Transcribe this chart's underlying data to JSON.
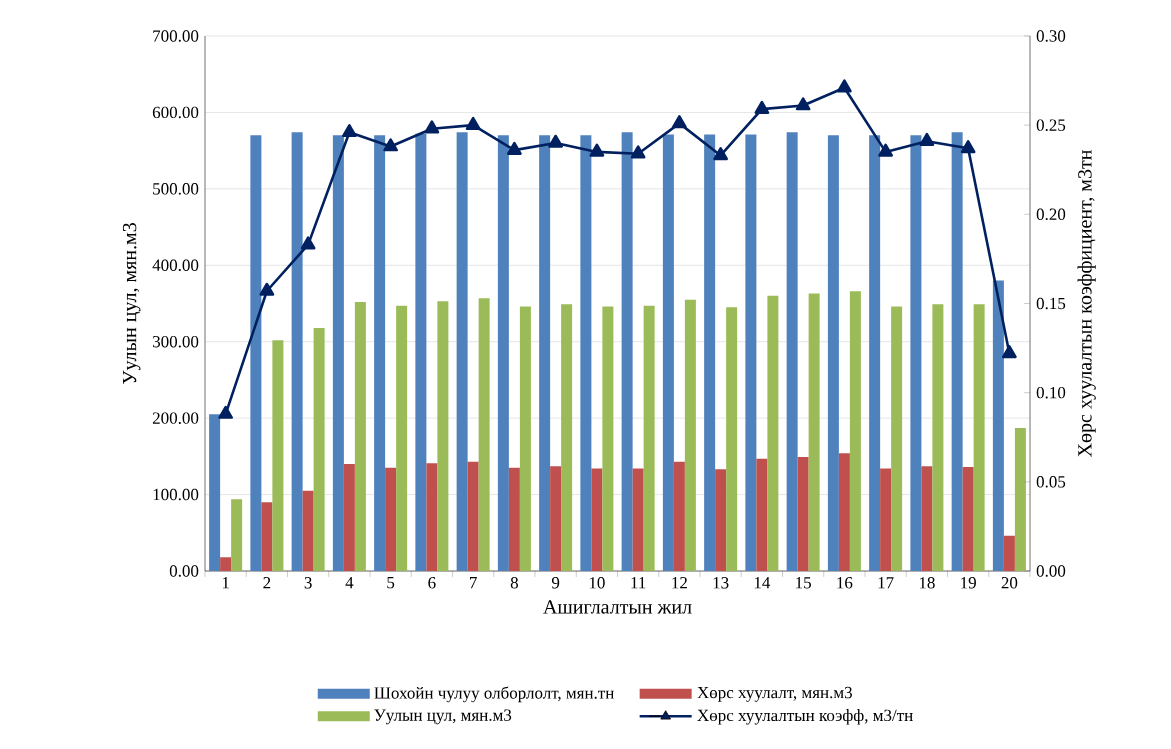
{
  "chart_data": {
    "type": "bar",
    "xlabel": "Ашиглалтын жил",
    "ylabel": "Уулын цул, мян.м3",
    "y2label": "Хөрс хуулалтын коэффициент, м3тн",
    "categories": [
      "1",
      "2",
      "3",
      "4",
      "5",
      "6",
      "7",
      "8",
      "9",
      "10",
      "11",
      "12",
      "13",
      "14",
      "15",
      "16",
      "17",
      "18",
      "19",
      "20"
    ],
    "series": [
      {
        "name": "Шохойн чулуу олборлолт, мян.тн",
        "color": "#4f81bd",
        "values": [
          205,
          570,
          574,
          570,
          570,
          572,
          574,
          570,
          570,
          570,
          574,
          571,
          571,
          571,
          574,
          570,
          570,
          570,
          574,
          380
        ]
      },
      {
        "name": "Хөрс хуулалт, мян.м3",
        "color": "#c0504d",
        "values": [
          18,
          90,
          105,
          140,
          135,
          141,
          143,
          135,
          137,
          134,
          134,
          143,
          133,
          147,
          149,
          154,
          134,
          137,
          136,
          46
        ]
      },
      {
        "name": "Уулын цул, мян.м3",
        "color": "#9bbb59",
        "values": [
          94,
          302,
          318,
          352,
          347,
          353,
          357,
          346,
          349,
          346,
          347,
          355,
          345,
          360,
          363,
          366,
          346,
          349,
          349,
          187
        ]
      },
      {
        "name": "Хөрс хуулалтын коэфф, м3/тн",
        "color": "#002060",
        "type": "line",
        "axis": "y2",
        "marker": "triangle",
        "values": [
          0.088,
          0.157,
          0.183,
          0.246,
          0.238,
          0.248,
          0.25,
          0.236,
          0.24,
          0.235,
          0.234,
          0.251,
          0.233,
          0.259,
          0.261,
          0.271,
          0.235,
          0.241,
          0.237,
          0.122
        ]
      }
    ],
    "ylim": [
      0,
      700
    ],
    "yticks": [
      {
        "value": 0,
        "label": "0.00"
      },
      {
        "value": 100,
        "label": "100.00"
      },
      {
        "value": 200,
        "label": "200.00"
      },
      {
        "value": 300,
        "label": "300.00"
      },
      {
        "value": 400,
        "label": "400.00"
      },
      {
        "value": 500,
        "label": "500.00"
      },
      {
        "value": 600,
        "label": "600.00"
      },
      {
        "value": 700,
        "label": "700.00"
      }
    ],
    "y2lim": [
      0,
      0.3
    ],
    "y2ticks": [
      {
        "value": 0,
        "label": "0.00"
      },
      {
        "value": 0.05,
        "label": "0.05"
      },
      {
        "value": 0.1,
        "label": "0.10"
      },
      {
        "value": 0.15,
        "label": "0.15"
      },
      {
        "value": 0.2,
        "label": "0.20"
      },
      {
        "value": 0.25,
        "label": "0.25"
      },
      {
        "value": 0.3,
        "label": "0.30"
      }
    ],
    "grid": "y",
    "legend": "bottom"
  }
}
